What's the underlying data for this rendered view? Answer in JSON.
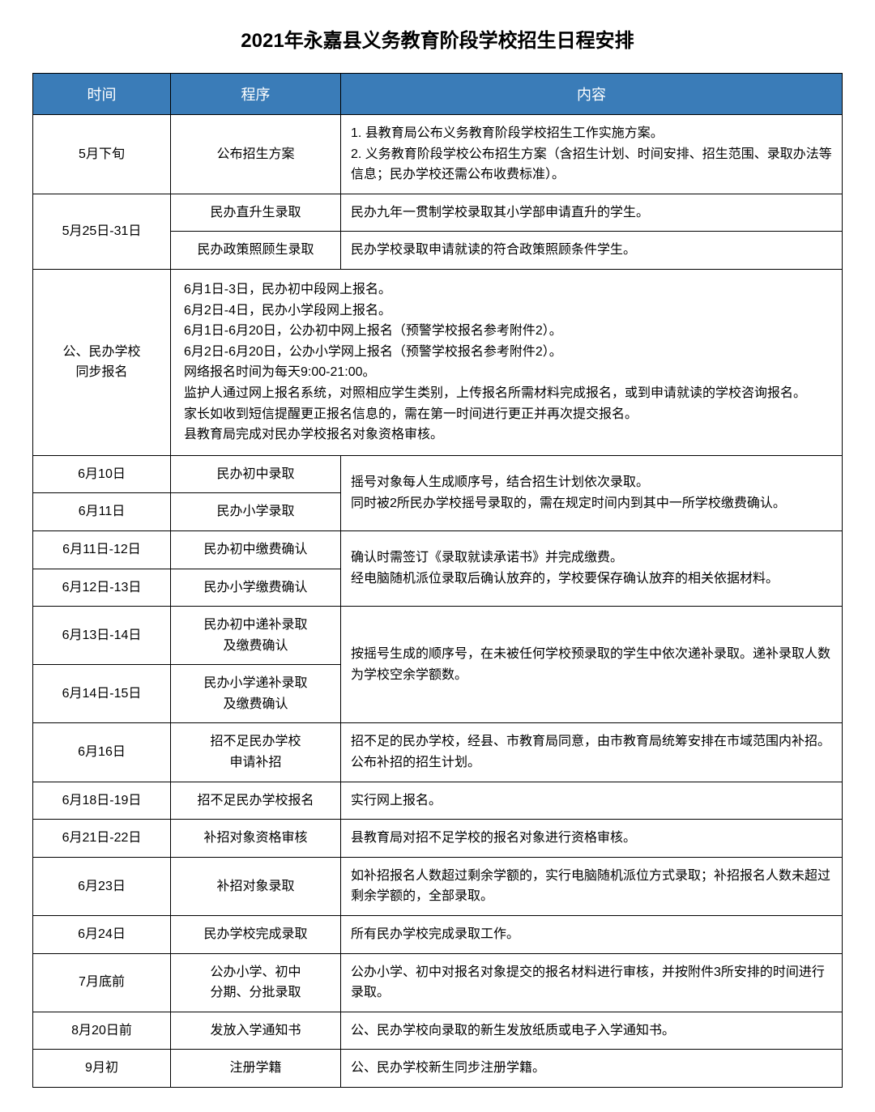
{
  "title": "2021年永嘉县义务教育阶段学校招生日程安排",
  "header": {
    "time": "时间",
    "procedure": "程序",
    "content": "内容"
  },
  "header_bg": "#3a7cb8",
  "header_color": "#ffffff",
  "border_color": "#000000",
  "rows": {
    "r1": {
      "time": "5月下旬",
      "proc": "公布招生方案",
      "content": "1. 县教育局公布义务教育阶段学校招生工作实施方案。\n2. 义务教育阶段学校公布招生方案（含招生计划、时间安排、招生范围、录取办法等信息；民办学校还需公布收费标准）。"
    },
    "r2": {
      "time": "5月25日-31日",
      "proc_a": "民办直升生录取",
      "content_a": "民办九年一贯制学校录取其小学部申请直升的学生。",
      "proc_b": "民办政策照顾生录取",
      "content_b": "民办学校录取申请就读的符合政策照顾条件学生。"
    },
    "r3": {
      "time": "公、民办学校\n同步报名",
      "content": "6月1日-3日，民办初中段网上报名。\n6月2日-4日，民办小学段网上报名。\n6月1日-6月20日，公办初中网上报名（预警学校报名参考附件2）。\n6月2日-6月20日，公办小学网上报名（预警学校报名参考附件2）。\n网络报名时间为每天9:00-21:00。\n监护人通过网上报名系统，对照相应学生类别，上传报名所需材料完成报名，或到申请就读的学校咨询报名。\n家长如收到短信提醒更正报名信息的，需在第一时间进行更正并再次提交报名。\n县教育局完成对民办学校报名对象资格审核。"
    },
    "r4": {
      "time_a": "6月10日",
      "proc_a": "民办初中录取",
      "time_b": "6月11日",
      "proc_b": "民办小学录取",
      "content": "摇号对象每人生成顺序号，结合招生计划依次录取。\n同时被2所民办学校摇号录取的，需在规定时间内到其中一所学校缴费确认。"
    },
    "r5": {
      "time_a": "6月11日-12日",
      "proc_a": "民办初中缴费确认",
      "time_b": "6月12日-13日",
      "proc_b": "民办小学缴费确认",
      "content": "确认时需签订《录取就读承诺书》并完成缴费。\n经电脑随机派位录取后确认放弃的，学校要保存确认放弃的相关依据材料。"
    },
    "r6": {
      "time_a": "6月13日-14日",
      "proc_a": "民办初中递补录取\n及缴费确认",
      "time_b": "6月14日-15日",
      "proc_b": "民办小学递补录取\n及缴费确认",
      "content": "按摇号生成的顺序号，在未被任何学校预录取的学生中依次递补录取。递补录取人数为学校空余学额数。"
    },
    "r7": {
      "time": "6月16日",
      "proc": "招不足民办学校\n申请补招",
      "content": "招不足的民办学校，经县、市教育局同意，由市教育局统筹安排在市域范围内补招。公布补招的招生计划。"
    },
    "r8": {
      "time": "6月18日-19日",
      "proc": "招不足民办学校报名",
      "content": "实行网上报名。"
    },
    "r9": {
      "time": "6月21日-22日",
      "proc": "补招对象资格审核",
      "content": "县教育局对招不足学校的报名对象进行资格审核。"
    },
    "r10": {
      "time": "6月23日",
      "proc": "补招对象录取",
      "content": "如补招报名人数超过剩余学额的，实行电脑随机派位方式录取；补招报名人数未超过剩余学额的，全部录取。"
    },
    "r11": {
      "time": "6月24日",
      "proc": "民办学校完成录取",
      "content": "所有民办学校完成录取工作。"
    },
    "r12": {
      "time": "7月底前",
      "proc": "公办小学、初中\n分期、分批录取",
      "content": "公办小学、初中对报名对象提交的报名材料进行审核，并按附件3所安排的时间进行录取。"
    },
    "r13": {
      "time": "8月20日前",
      "proc": "发放入学通知书",
      "content": "公、民办学校向录取的新生发放纸质或电子入学通知书。"
    },
    "r14": {
      "time": "9月初",
      "proc": "注册学籍",
      "content": "公、民办学校新生同步注册学籍。"
    }
  }
}
